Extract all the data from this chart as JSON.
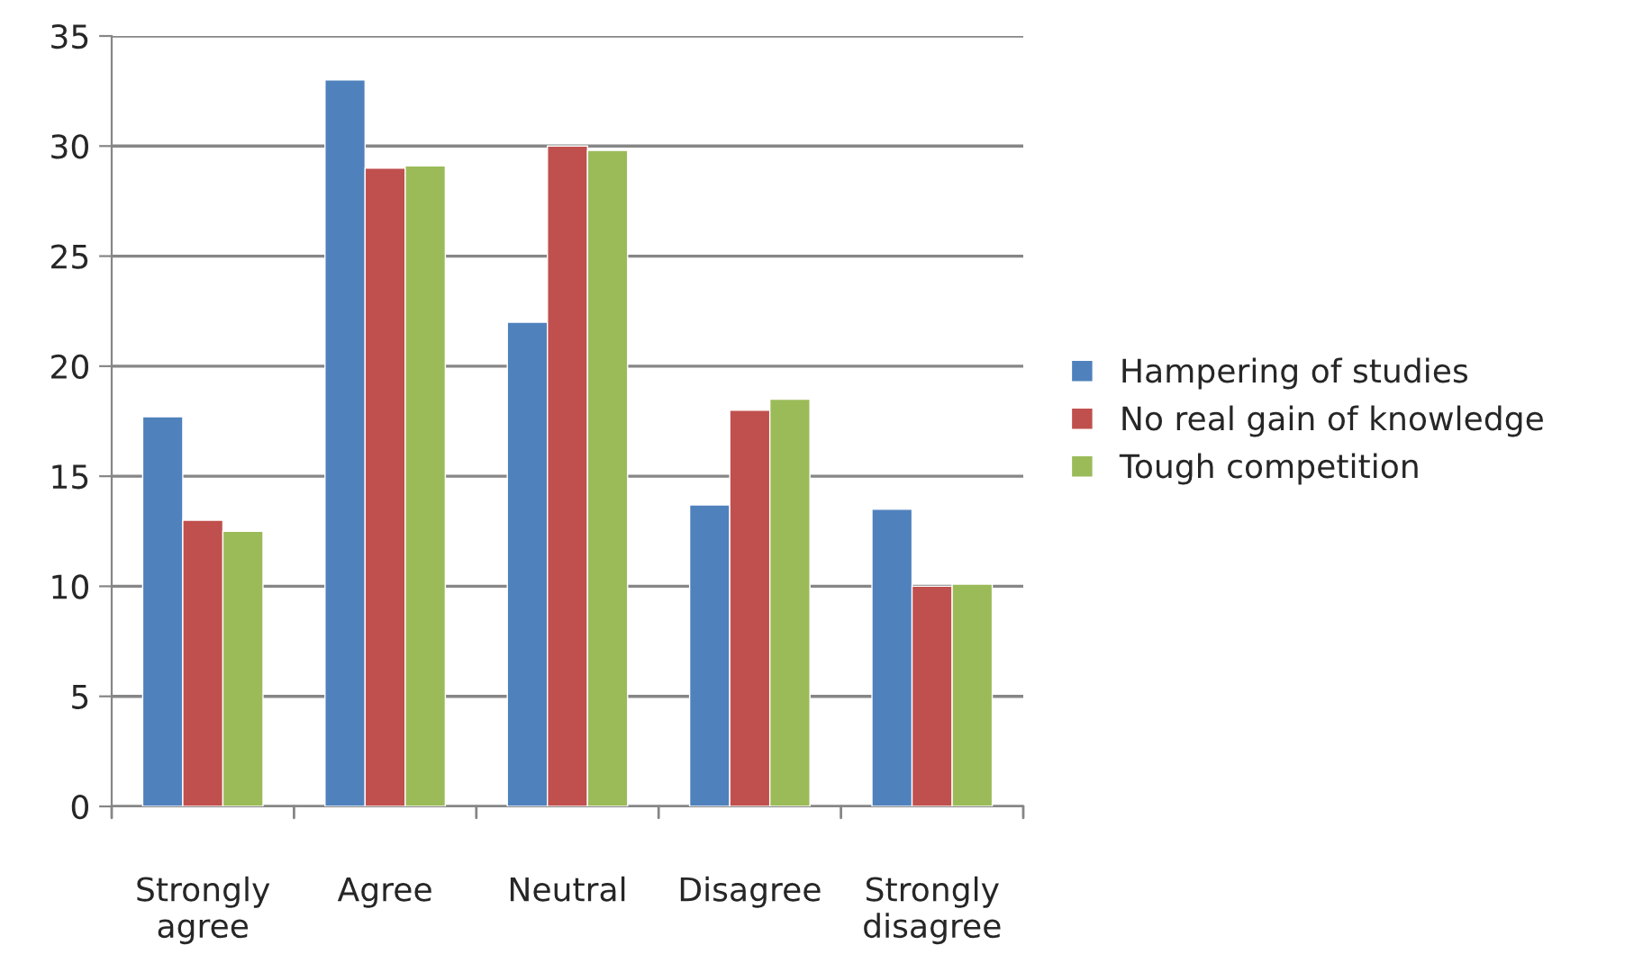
{
  "chart_data": {
    "type": "bar",
    "categories": [
      "Strongly agree",
      "Agree",
      "Neutral",
      "Disagree",
      "Strongly disagree"
    ],
    "series": [
      {
        "name": "Hampering of studies",
        "color": "#4f81bd",
        "values": [
          17.7,
          33,
          22,
          13.7,
          13.5
        ]
      },
      {
        "name": "No real gain of knowledge",
        "color": "#c0504d",
        "values": [
          13,
          29,
          30,
          18,
          10
        ]
      },
      {
        "name": "Tough competition",
        "color": "#9bbb59",
        "values": [
          12.5,
          29.1,
          29.8,
          18.5,
          10.1
        ]
      }
    ],
    "ylim": [
      0,
      35
    ],
    "yticks": [
      0,
      5,
      10,
      15,
      20,
      25,
      30,
      35
    ],
    "grid": "y",
    "legend": "right"
  }
}
